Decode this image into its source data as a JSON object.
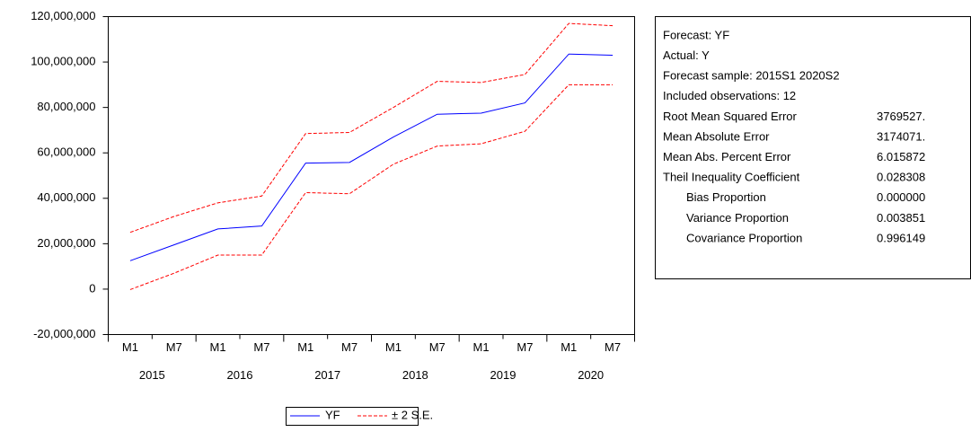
{
  "chart_data": {
    "type": "line",
    "categories": [
      "M1",
      "M7",
      "M1",
      "M7",
      "M1",
      "M7",
      "M1",
      "M7",
      "M1",
      "M7",
      "M1",
      "M7"
    ],
    "x_groups": [
      "2015",
      "2016",
      "2017",
      "2018",
      "2019",
      "2020"
    ],
    "series": [
      {
        "name": "YF",
        "color": "#0000ff",
        "values": [
          12500000,
          19500000,
          26500000,
          27800000,
          55500000,
          55800000,
          67000000,
          77000000,
          77500000,
          82000000,
          103500000,
          103000000
        ]
      }
    ],
    "band": {
      "name": "± 2 S.E.",
      "color": "#ff0000",
      "upper": [
        25000000,
        32000000,
        38000000,
        41000000,
        68500000,
        69000000,
        80000000,
        91500000,
        91000000,
        94500000,
        117000000,
        116000000
      ],
      "lower": [
        -200000,
        7000000,
        15000000,
        15000000,
        42500000,
        42000000,
        55000000,
        63000000,
        64000000,
        69500000,
        90000000,
        90000000
      ]
    },
    "ylim": [
      -20000000,
      120000000
    ],
    "yticks": [
      {
        "value": -20000000,
        "label": "-20,000,000"
      },
      0,
      {
        "value": 20000000,
        "label": "20,000,000"
      },
      {
        "value": 40000000,
        "label": "40,000,000"
      },
      {
        "value": 60000000,
        "label": "60,000,000"
      },
      {
        "value": 80000000,
        "label": "80,000,000"
      },
      {
        "value": 100000000,
        "label": "100,000,000"
      },
      {
        "value": 120000000,
        "label": "120,000,000"
      }
    ],
    "grid": false
  },
  "stats": {
    "header": [
      "Forecast: YF",
      "Actual: Y",
      "Forecast sample: 2015S1 2020S2",
      "Included observations: 12"
    ],
    "rows": [
      [
        "Root Mean Squared Error",
        "3769527."
      ],
      [
        "Mean Absolute Error",
        "3174071."
      ],
      [
        "Mean Abs. Percent Error",
        "6.015872"
      ],
      [
        "Theil Inequality Coefficient",
        "0.028308"
      ],
      [
        "Bias Proportion",
        "0.000000"
      ],
      [
        "Variance Proportion",
        "0.003851"
      ],
      [
        "Covariance Proportion",
        "0.996149"
      ]
    ]
  }
}
